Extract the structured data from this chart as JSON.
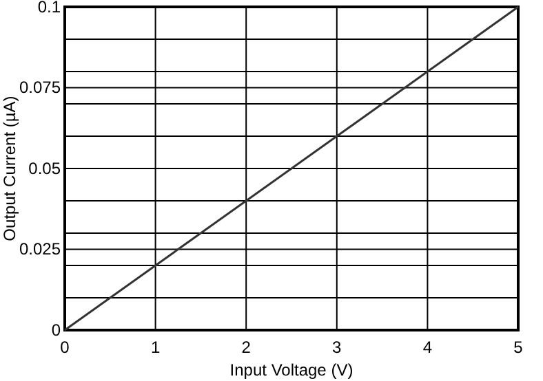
{
  "chart_data": {
    "type": "line",
    "xlabel": "Input Voltage (V)",
    "ylabel": "Output Current (µA)",
    "x": [
      0,
      5
    ],
    "series": [
      {
        "color": "#333333",
        "values": [
          0,
          0.1
        ]
      }
    ],
    "xlim": [
      0,
      5
    ],
    "ylim": [
      0,
      0.1
    ],
    "xticks": [
      0,
      1,
      2,
      3,
      4,
      5
    ],
    "yticks": [
      0,
      {
        "value": 0.01,
        "label": null
      },
      {
        "value": 0.02,
        "label": null
      },
      0.025,
      {
        "value": 0.03,
        "label": null
      },
      {
        "value": 0.04,
        "label": null
      },
      0.05,
      {
        "value": 0.06,
        "label": null
      },
      {
        "value": 0.07,
        "label": null
      },
      0.075,
      {
        "value": 0.08,
        "label": null
      },
      {
        "value": 0.09,
        "label": null
      },
      0.1
    ],
    "grid": true,
    "marker": "none",
    "line_style": "solid"
  }
}
